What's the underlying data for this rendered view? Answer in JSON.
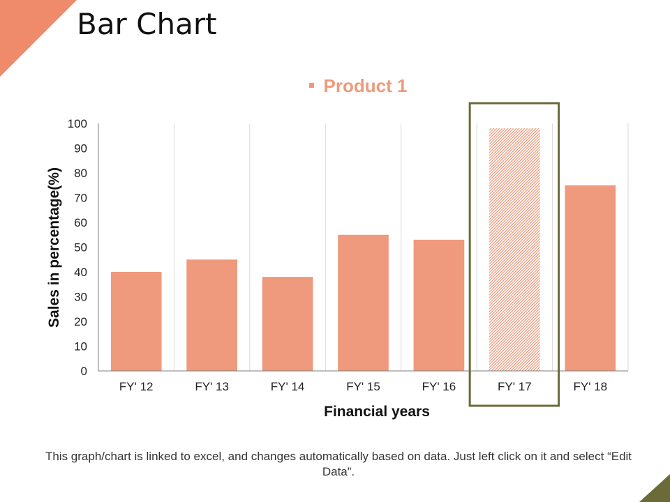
{
  "page": {
    "title": "Bar Chart",
    "footnote": "This graph/chart is linked to excel, and changes automatically based on data. Just left click on it and select “Edit Data”."
  },
  "colors": {
    "bar": "#EF9A7C",
    "legend_text": "#EF9A7C",
    "highlight_frame": "#6B6B3A",
    "corner_top_left": "#EF8A6A",
    "corner_bottom_right": "#6B6B3A",
    "gridline": "#D9D9D9",
    "axis": "#7F7F7F"
  },
  "chart_data": {
    "type": "bar",
    "categories": [
      "FY' 12",
      "FY' 13",
      "FY' 14",
      "FY' 15",
      "FY' 16",
      "FY' 17",
      "FY' 18"
    ],
    "series": [
      {
        "name": "Product 1",
        "values": [
          40,
          45,
          38,
          55,
          53,
          98,
          75
        ]
      }
    ],
    "highlighted_category": "FY' 17",
    "xlabel": "Financial years",
    "ylabel": "Sales in percentage(%)",
    "ylim": [
      0,
      100
    ],
    "yticks": [
      0,
      10,
      20,
      30,
      40,
      50,
      60,
      70,
      80,
      90,
      100
    ],
    "legend_position": "top",
    "vertical_gridlines": true
  }
}
